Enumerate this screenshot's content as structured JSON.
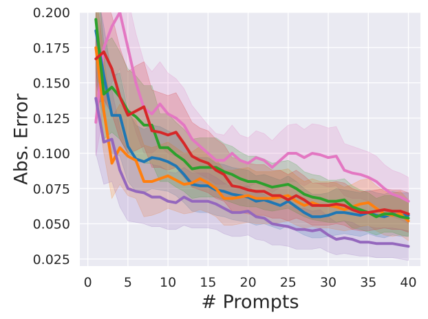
{
  "chart_data": {
    "type": "line",
    "title": "",
    "xlabel": "# Prompts",
    "ylabel": "Abs. Error",
    "xlim": [
      -1,
      41.5
    ],
    "ylim": [
      0.02,
      0.2
    ],
    "xticks": [
      0,
      5,
      10,
      15,
      20,
      25,
      30,
      35,
      40
    ],
    "xtick_labels": [
      "0",
      "5",
      "10",
      "15",
      "20",
      "25",
      "30",
      "35",
      "40"
    ],
    "yticks": [
      0.025,
      0.05,
      0.075,
      0.1,
      0.125,
      0.15,
      0.175,
      0.2
    ],
    "ytick_labels": [
      "0.025",
      "0.050",
      "0.075",
      "0.100",
      "0.125",
      "0.150",
      "0.175",
      "0.200"
    ],
    "grid": true,
    "legend": "none",
    "background": "#eaeaf2",
    "x": [
      1,
      2,
      3,
      4,
      5,
      6,
      7,
      8,
      9,
      10,
      11,
      12,
      13,
      14,
      15,
      16,
      17,
      18,
      19,
      20,
      21,
      22,
      23,
      24,
      25,
      26,
      27,
      28,
      29,
      30,
      31,
      32,
      33,
      34,
      35,
      36,
      37,
      38,
      39,
      40
    ],
    "series": [
      {
        "color": "#e377c2",
        "values": [
          0.122,
          0.175,
          0.19,
          0.2,
          0.175,
          0.15,
          0.132,
          0.128,
          0.135,
          0.128,
          0.125,
          0.12,
          0.11,
          0.105,
          0.1,
          0.095,
          0.095,
          0.1,
          0.095,
          0.093,
          0.097,
          0.095,
          0.09,
          0.095,
          0.1,
          0.1,
          0.097,
          0.1,
          0.099,
          0.097,
          0.098,
          0.088,
          0.086,
          0.085,
          0.083,
          0.08,
          0.075,
          0.071,
          0.069,
          0.066
        ],
        "lower": [
          0.098,
          0.13,
          0.15,
          0.16,
          0.135,
          0.115,
          0.1,
          0.1,
          0.105,
          0.1,
          0.098,
          0.095,
          0.088,
          0.085,
          0.082,
          0.078,
          0.078,
          0.08,
          0.078,
          0.076,
          0.079,
          0.077,
          0.072,
          0.076,
          0.08,
          0.08,
          0.077,
          0.08,
          0.078,
          0.076,
          0.077,
          0.07,
          0.068,
          0.068,
          0.066,
          0.063,
          0.059,
          0.055,
          0.053,
          0.05
        ],
        "upper": [
          0.15,
          0.22,
          0.23,
          0.23,
          0.21,
          0.185,
          0.165,
          0.158,
          0.165,
          0.157,
          0.153,
          0.146,
          0.134,
          0.127,
          0.12,
          0.114,
          0.113,
          0.12,
          0.113,
          0.111,
          0.116,
          0.114,
          0.109,
          0.115,
          0.12,
          0.121,
          0.117,
          0.121,
          0.12,
          0.118,
          0.119,
          0.107,
          0.105,
          0.103,
          0.101,
          0.098,
          0.092,
          0.088,
          0.086,
          0.083
        ]
      },
      {
        "color": "#1f77b4",
        "values": [
          0.187,
          0.155,
          0.127,
          0.127,
          0.105,
          0.096,
          0.094,
          0.097,
          0.096,
          0.094,
          0.091,
          0.085,
          0.078,
          0.077,
          0.077,
          0.074,
          0.073,
          0.071,
          0.07,
          0.069,
          0.066,
          0.067,
          0.065,
          0.063,
          0.066,
          0.062,
          0.058,
          0.055,
          0.055,
          0.056,
          0.058,
          0.058,
          0.057,
          0.056,
          0.058,
          0.056,
          0.055,
          0.057,
          0.056,
          0.056
        ],
        "lower": [
          0.15,
          0.125,
          0.1,
          0.098,
          0.08,
          0.073,
          0.072,
          0.075,
          0.074,
          0.073,
          0.07,
          0.065,
          0.059,
          0.058,
          0.058,
          0.056,
          0.055,
          0.053,
          0.052,
          0.051,
          0.049,
          0.05,
          0.048,
          0.046,
          0.049,
          0.045,
          0.042,
          0.04,
          0.04,
          0.041,
          0.042,
          0.043,
          0.042,
          0.041,
          0.043,
          0.041,
          0.04,
          0.042,
          0.041,
          0.041
        ],
        "upper": [
          0.22,
          0.19,
          0.155,
          0.157,
          0.13,
          0.12,
          0.117,
          0.12,
          0.119,
          0.116,
          0.113,
          0.106,
          0.098,
          0.097,
          0.097,
          0.093,
          0.092,
          0.09,
          0.089,
          0.088,
          0.084,
          0.085,
          0.083,
          0.081,
          0.084,
          0.08,
          0.075,
          0.071,
          0.071,
          0.072,
          0.075,
          0.074,
          0.073,
          0.072,
          0.074,
          0.072,
          0.071,
          0.073,
          0.072,
          0.072
        ]
      },
      {
        "color": "#ff7f0e",
        "values": [
          0.175,
          0.13,
          0.093,
          0.104,
          0.098,
          0.095,
          0.08,
          0.08,
          0.082,
          0.084,
          0.081,
          0.078,
          0.079,
          0.082,
          0.079,
          0.075,
          0.068,
          0.068,
          0.069,
          0.07,
          0.068,
          0.068,
          0.068,
          0.069,
          0.07,
          0.066,
          0.063,
          0.065,
          0.063,
          0.063,
          0.062,
          0.06,
          0.062,
          0.064,
          0.065,
          0.061,
          0.057,
          0.056,
          0.057,
          0.052
        ],
        "lower": [
          0.14,
          0.1,
          0.068,
          0.078,
          0.07,
          0.068,
          0.055,
          0.056,
          0.058,
          0.061,
          0.059,
          0.057,
          0.058,
          0.06,
          0.058,
          0.055,
          0.049,
          0.049,
          0.05,
          0.051,
          0.05,
          0.05,
          0.05,
          0.051,
          0.052,
          0.049,
          0.047,
          0.048,
          0.047,
          0.047,
          0.046,
          0.045,
          0.046,
          0.048,
          0.049,
          0.045,
          0.042,
          0.041,
          0.042,
          0.038
        ],
        "upper": [
          0.215,
          0.17,
          0.125,
          0.135,
          0.128,
          0.123,
          0.106,
          0.104,
          0.106,
          0.108,
          0.104,
          0.1,
          0.101,
          0.105,
          0.101,
          0.096,
          0.088,
          0.088,
          0.089,
          0.09,
          0.087,
          0.087,
          0.087,
          0.088,
          0.089,
          0.084,
          0.08,
          0.082,
          0.08,
          0.08,
          0.079,
          0.076,
          0.078,
          0.081,
          0.082,
          0.077,
          0.073,
          0.072,
          0.073,
          0.067
        ]
      },
      {
        "color": "#9467bd",
        "values": [
          0.139,
          0.108,
          0.11,
          0.088,
          0.075,
          0.073,
          0.072,
          0.069,
          0.069,
          0.066,
          0.065,
          0.069,
          0.066,
          0.066,
          0.066,
          0.064,
          0.061,
          0.058,
          0.058,
          0.059,
          0.055,
          0.054,
          0.05,
          0.049,
          0.048,
          0.046,
          0.046,
          0.045,
          0.046,
          0.042,
          0.039,
          0.04,
          0.039,
          0.037,
          0.037,
          0.036,
          0.036,
          0.036,
          0.035,
          0.034
        ],
        "lower": [
          0.1,
          0.078,
          0.08,
          0.062,
          0.052,
          0.051,
          0.05,
          0.048,
          0.048,
          0.046,
          0.046,
          0.049,
          0.047,
          0.047,
          0.047,
          0.046,
          0.043,
          0.041,
          0.041,
          0.042,
          0.039,
          0.038,
          0.035,
          0.035,
          0.034,
          0.032,
          0.032,
          0.032,
          0.033,
          0.03,
          0.028,
          0.029,
          0.028,
          0.027,
          0.027,
          0.026,
          0.026,
          0.026,
          0.025,
          0.024
        ],
        "upper": [
          0.18,
          0.145,
          0.145,
          0.118,
          0.1,
          0.097,
          0.095,
          0.092,
          0.091,
          0.087,
          0.086,
          0.09,
          0.086,
          0.086,
          0.086,
          0.083,
          0.079,
          0.076,
          0.076,
          0.077,
          0.072,
          0.071,
          0.066,
          0.064,
          0.063,
          0.061,
          0.061,
          0.059,
          0.06,
          0.055,
          0.051,
          0.052,
          0.051,
          0.048,
          0.048,
          0.047,
          0.047,
          0.047,
          0.046,
          0.045
        ]
      },
      {
        "color": "#2ca02c",
        "values": [
          0.195,
          0.142,
          0.147,
          0.14,
          0.13,
          0.126,
          0.12,
          0.12,
          0.104,
          0.104,
          0.099,
          0.095,
          0.089,
          0.09,
          0.09,
          0.09,
          0.087,
          0.085,
          0.082,
          0.08,
          0.08,
          0.078,
          0.076,
          0.077,
          0.078,
          0.075,
          0.071,
          0.069,
          0.068,
          0.066,
          0.066,
          0.067,
          0.062,
          0.06,
          0.058,
          0.055,
          0.057,
          0.057,
          0.055,
          0.054
        ],
        "lower": [
          0.16,
          0.11,
          0.115,
          0.11,
          0.1,
          0.097,
          0.093,
          0.093,
          0.08,
          0.08,
          0.076,
          0.073,
          0.068,
          0.069,
          0.069,
          0.069,
          0.067,
          0.065,
          0.063,
          0.062,
          0.062,
          0.06,
          0.059,
          0.06,
          0.061,
          0.058,
          0.055,
          0.053,
          0.052,
          0.051,
          0.051,
          0.052,
          0.047,
          0.046,
          0.044,
          0.042,
          0.044,
          0.044,
          0.042,
          0.041
        ],
        "upper": [
          0.235,
          0.178,
          0.182,
          0.172,
          0.16,
          0.155,
          0.148,
          0.148,
          0.128,
          0.128,
          0.122,
          0.117,
          0.11,
          0.111,
          0.111,
          0.111,
          0.107,
          0.105,
          0.101,
          0.098,
          0.098,
          0.096,
          0.093,
          0.094,
          0.095,
          0.092,
          0.087,
          0.085,
          0.084,
          0.081,
          0.081,
          0.082,
          0.077,
          0.074,
          0.072,
          0.068,
          0.07,
          0.07,
          0.068,
          0.067
        ]
      },
      {
        "color": "#d62728",
        "values": [
          0.167,
          0.172,
          0.16,
          0.14,
          0.127,
          0.13,
          0.133,
          0.116,
          0.115,
          0.113,
          0.115,
          0.107,
          0.098,
          0.095,
          0.093,
          0.088,
          0.085,
          0.077,
          0.076,
          0.074,
          0.073,
          0.073,
          0.07,
          0.07,
          0.067,
          0.07,
          0.067,
          0.063,
          0.063,
          0.063,
          0.064,
          0.063,
          0.06,
          0.058,
          0.058,
          0.059,
          0.06,
          0.059,
          0.059,
          0.057
        ],
        "lower": [
          0.135,
          0.138,
          0.128,
          0.11,
          0.1,
          0.102,
          0.105,
          0.09,
          0.09,
          0.088,
          0.09,
          0.083,
          0.076,
          0.074,
          0.072,
          0.068,
          0.066,
          0.059,
          0.058,
          0.057,
          0.056,
          0.056,
          0.054,
          0.054,
          0.052,
          0.054,
          0.052,
          0.049,
          0.049,
          0.049,
          0.05,
          0.049,
          0.046,
          0.045,
          0.045,
          0.046,
          0.047,
          0.046,
          0.046,
          0.044
        ],
        "upper": [
          0.205,
          0.212,
          0.198,
          0.175,
          0.158,
          0.162,
          0.165,
          0.145,
          0.143,
          0.141,
          0.143,
          0.133,
          0.122,
          0.118,
          0.116,
          0.11,
          0.106,
          0.097,
          0.096,
          0.093,
          0.092,
          0.092,
          0.088,
          0.088,
          0.085,
          0.088,
          0.084,
          0.079,
          0.079,
          0.079,
          0.08,
          0.079,
          0.075,
          0.073,
          0.073,
          0.074,
          0.075,
          0.074,
          0.074,
          0.072
        ]
      }
    ]
  }
}
